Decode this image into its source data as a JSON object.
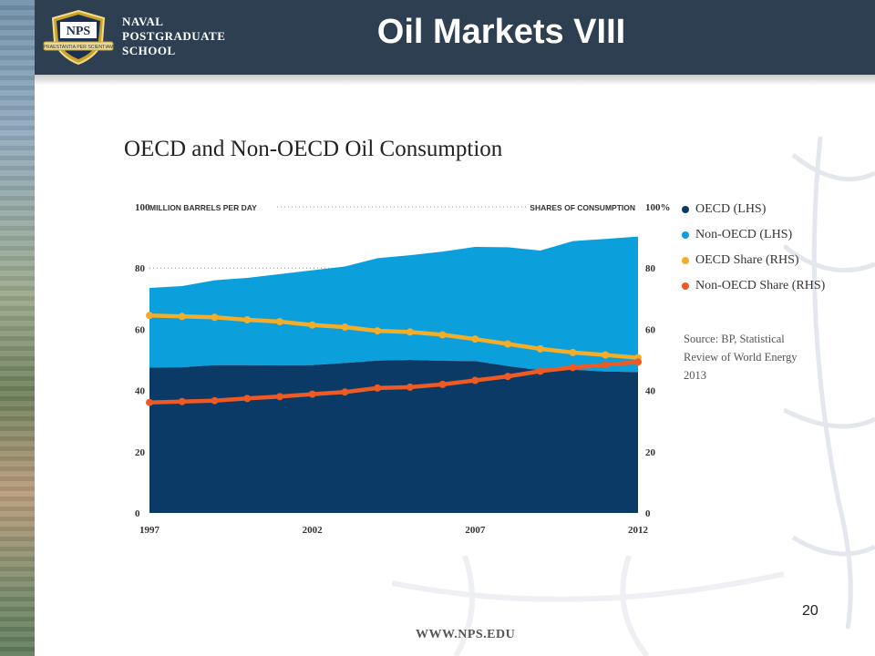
{
  "header": {
    "title": "Oil Markets VIII",
    "logo_badge": "NPS",
    "logo_motto": "PRAESTANTIA PER SCIENTIAM",
    "institution_lines": [
      "NAVAL",
      "POSTGRADUATE",
      "SCHOOL"
    ]
  },
  "chart_title": "OECD and Non-OECD Oil Consumption",
  "legend": [
    {
      "label": "OECD (LHS)",
      "color": "#0b3a66"
    },
    {
      "label": "Non-OECD (LHS)",
      "color": "#0b9fdb"
    },
    {
      "label": "OECD Share (RHS)",
      "color": "#f2ae2b"
    },
    {
      "label": "Non-OECD Share (RHS)",
      "color": "#ee5a24"
    }
  ],
  "source": "Source: BP, Statistical Review of World Energy 2013",
  "page_number": "20",
  "footer_url": "WWW.NPS.EDU",
  "chart_data": {
    "type": "area",
    "title": "OECD and Non-OECD Oil Consumption",
    "ylabel": "MILLION BARRELS PER DAY",
    "y2label": "SHARES OF CONSUMPTION",
    "x": [
      1997,
      1998,
      1999,
      2000,
      2001,
      2002,
      2003,
      2004,
      2005,
      2006,
      2007,
      2008,
      2009,
      2010,
      2011,
      2012
    ],
    "xticks": [
      "1997",
      "2002",
      "2007",
      "2012"
    ],
    "ylim": [
      0,
      100
    ],
    "yticks": [
      "0",
      "20",
      "40",
      "60",
      "80",
      "100"
    ],
    "y2ticks": [
      "0",
      "20",
      "40",
      "60",
      "80",
      "100%"
    ],
    "grid": "dotted line at 80 and at top",
    "legend_position": "right",
    "series": [
      {
        "name": "OECD (LHS)",
        "type": "area",
        "axis": "left",
        "values": [
          47.5,
          47.6,
          48.3,
          48.3,
          48.2,
          48.3,
          49.0,
          49.8,
          50.0,
          49.7,
          49.6,
          48.0,
          46.6,
          46.8,
          46.2,
          46.0
        ]
      },
      {
        "name": "Non-OECD (LHS)",
        "type": "area",
        "axis": "left",
        "values": [
          26.0,
          26.5,
          27.7,
          28.5,
          29.8,
          31.0,
          31.5,
          33.4,
          34.2,
          35.7,
          37.3,
          38.8,
          39.1,
          42.0,
          43.3,
          44.3
        ]
      },
      {
        "name": "OECD Share (RHS)",
        "type": "line",
        "axis": "right",
        "values": [
          64.5,
          64.2,
          63.9,
          63.1,
          62.5,
          61.4,
          60.7,
          59.5,
          59.1,
          58.2,
          56.8,
          55.2,
          53.6,
          52.4,
          51.6,
          50.7
        ]
      },
      {
        "name": "Non-OECD Share (RHS)",
        "type": "line",
        "axis": "right",
        "values": [
          36.1,
          36.4,
          36.7,
          37.4,
          38.0,
          38.8,
          39.5,
          40.8,
          41.1,
          42.0,
          43.3,
          44.6,
          46.3,
          47.5,
          48.4,
          49.3
        ]
      }
    ]
  }
}
